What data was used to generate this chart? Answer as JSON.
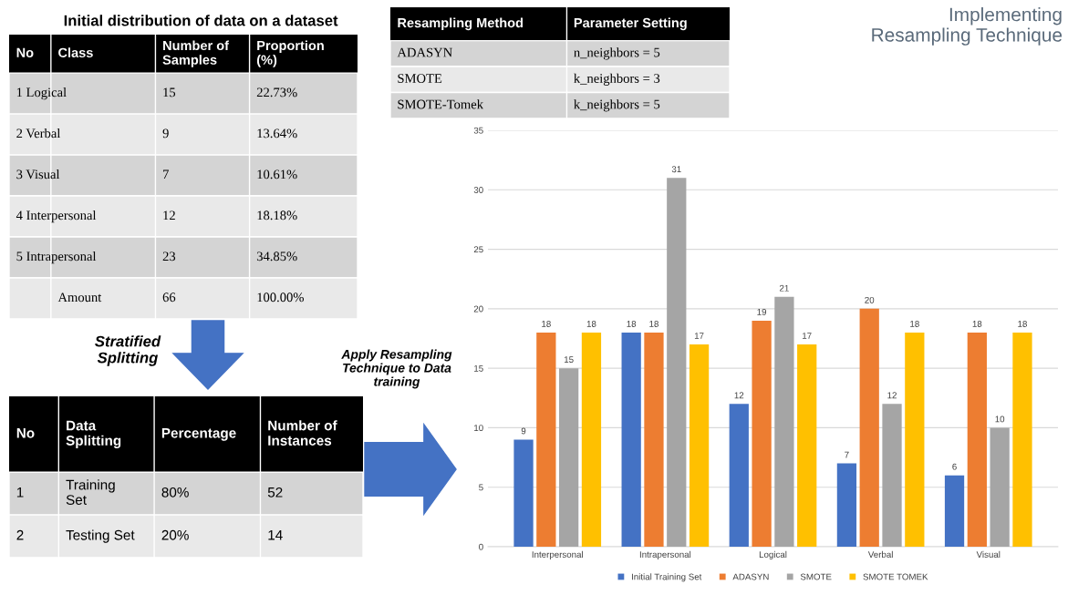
{
  "chart_data": [
    {
      "type": "other",
      "title": "Initial distribution of data on a dataset",
      "categories": [
        "No",
        "Class",
        "Number of\nSamples",
        "Proportion\n(%)"
      ],
      "cell_labels": [
        [
          "1 Logical",
          "15",
          "22.73%"
        ],
        [
          "2 Verbal",
          "9",
          "13.64%"
        ],
        [
          "3 Visual",
          "7",
          "10.61%"
        ],
        [
          "4 Interpersonal",
          "12",
          "18.18%"
        ],
        [
          "5 Intrapersonal",
          "23",
          "34.85%"
        ],
        [
          null,
          "Amount",
          "66",
          "100.00%"
        ]
      ],
      "annotations": [
        "Stratified\nSplitting"
      ]
    },
    {
      "type": "other",
      "categories": [
        "No",
        "Data\nSplitting",
        "Percentage",
        "Number of\nInstances"
      ],
      "cell_labels": [
        [
          "1",
          "Training\nSet",
          "80%",
          "52"
        ],
        [
          "2",
          "Testing Set",
          "20%",
          "14"
        ]
      ]
    },
    {
      "type": "other",
      "categories": [
        "Resampling Method",
        "Parameter Setting"
      ],
      "cell_labels": [
        [
          "ADASYN",
          "n_neighbors = 5"
        ],
        [
          "SMOTE",
          "k_neighbors = 3"
        ],
        [
          "SMOTE-Tomek",
          "k_neighbors = 5"
        ]
      ]
    },
    {
      "type": "bar",
      "title": "Implementing\nResampling Technique",
      "annotations": [
        "Apply Resampling\nTechnique to Data\ntraining"
      ],
      "categories": [
        "Interpersonal",
        "Intrapersonal",
        "Logical",
        "Verbal",
        "Visual"
      ],
      "series": [
        {
          "name": "Initial Training Set",
          "color": "#4472c4",
          "values": [
            9,
            18,
            12,
            7,
            6
          ]
        },
        {
          "name": "ADASYN",
          "color": "#ed7d31",
          "values": [
            18,
            18,
            19,
            20,
            18
          ]
        },
        {
          "name": "SMOTE",
          "color": "#a5a5a5",
          "values": [
            15,
            31,
            21,
            12,
            10
          ]
        },
        {
          "name": "SMOTE TOMEK",
          "color": "#ffc000",
          "values": [
            18,
            17,
            17,
            18,
            18
          ]
        }
      ],
      "ylim": [
        0,
        35
      ],
      "yticks": [
        0,
        5,
        10,
        15,
        20,
        25,
        30,
        35
      ],
      "grid": "y",
      "legend": "bottom",
      "data_labels": true
    }
  ]
}
